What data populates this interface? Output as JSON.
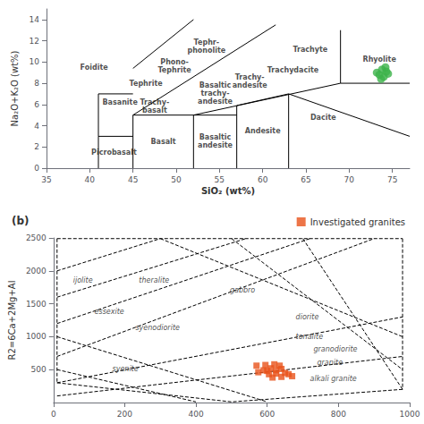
{
  "chart_data": [
    {
      "type": "scatter",
      "xlabel": "SiO₂ (wt%)",
      "ylabel": "Na₂O+K₂O (wt%)",
      "xlim": [
        35,
        77
      ],
      "ylim": [
        0,
        15
      ],
      "xticks": [
        35,
        40,
        45,
        50,
        55,
        60,
        65,
        70,
        75
      ],
      "yticks": [
        0,
        2,
        4,
        6,
        8,
        10,
        12,
        14
      ],
      "grid": false,
      "series": [
        {
          "type": "line",
          "color": "#000000",
          "line_style": "solid",
          "x": [
            41,
            41
          ],
          "values": [
            0,
            3
          ]
        },
        {
          "type": "line",
          "color": "#000000",
          "line_style": "solid",
          "x": [
            41,
            45
          ],
          "values": [
            3,
            3
          ]
        },
        {
          "type": "line",
          "color": "#000000",
          "line_style": "solid",
          "x": [
            41,
            41
          ],
          "values": [
            3,
            7
          ]
        },
        {
          "type": "line",
          "color": "#000000",
          "line_style": "solid",
          "x": [
            41,
            45
          ],
          "values": [
            7,
            7
          ]
        },
        {
          "type": "line",
          "color": "#000000",
          "line_style": "solid",
          "x": [
            45,
            45
          ],
          "values": [
            0,
            5
          ]
        },
        {
          "type": "line",
          "color": "#000000",
          "line_style": "solid",
          "x": [
            45,
            52
          ],
          "values": [
            5,
            5
          ]
        },
        {
          "type": "line",
          "color": "#000000",
          "line_style": "solid",
          "x": [
            52,
            52
          ],
          "values": [
            0,
            5
          ]
        },
        {
          "type": "line",
          "color": "#000000",
          "line_style": "solid",
          "x": [
            52,
            57
          ],
          "values": [
            5,
            5
          ]
        },
        {
          "type": "line",
          "color": "#000000",
          "line_style": "solid",
          "x": [
            57,
            57
          ],
          "values": [
            0,
            5.9
          ]
        },
        {
          "type": "line",
          "color": "#000000",
          "line_style": "solid",
          "x": [
            57,
            63
          ],
          "values": [
            5.9,
            7
          ]
        },
        {
          "type": "line",
          "color": "#000000",
          "line_style": "solid",
          "x": [
            63,
            63
          ],
          "values": [
            0,
            7
          ]
        },
        {
          "type": "line",
          "color": "#000000",
          "line_style": "solid",
          "x": [
            63,
            77
          ],
          "values": [
            7,
            3
          ]
        },
        {
          "type": "line",
          "color": "#000000",
          "line_style": "solid",
          "x": [
            52,
            69
          ],
          "values": [
            5,
            8
          ]
        },
        {
          "type": "line",
          "color": "#000000",
          "line_style": "solid",
          "x": [
            69,
            77
          ],
          "values": [
            8,
            8
          ]
        },
        {
          "type": "line",
          "color": "#000000",
          "line_style": "solid",
          "x": [
            69,
            69
          ],
          "values": [
            8,
            13
          ]
        },
        {
          "type": "line",
          "color": "#000000",
          "line_style": "solid",
          "x": [
            45,
            61.5
          ],
          "values": [
            5,
            13.5
          ]
        },
        {
          "type": "line",
          "color": "#000000",
          "line_style": "solid",
          "x": [
            45,
            52
          ],
          "values": [
            9.4,
            14
          ]
        },
        {
          "type": "scatter",
          "color": "#3CB34A",
          "marker": "circle",
          "x": [
            73.2,
            73.8,
            74.3,
            74.0,
            73.5,
            74.5,
            73.7,
            74.2
          ],
          "values": [
            9.0,
            9.3,
            9.1,
            8.6,
            8.8,
            8.9,
            8.4,
            9.5
          ]
        }
      ],
      "annotations": [
        {
          "text": "Picrobasalt",
          "x": 42.8,
          "y": 1.5
        },
        {
          "text": "Basalt",
          "x": 48.5,
          "y": 2.5
        },
        {
          "text": "Basaltic\nandesite",
          "x": 54.5,
          "y": 2.5
        },
        {
          "text": "Andesite",
          "x": 60.0,
          "y": 3.5
        },
        {
          "text": "Dacite",
          "x": 67.0,
          "y": 4.8
        },
        {
          "text": "Rhyolite",
          "x": 73.5,
          "y": 10.2
        },
        {
          "text": "Trachyte",
          "x": 65.5,
          "y": 11.2
        },
        {
          "text": "Trachydacite",
          "x": 63.5,
          "y": 9.2
        },
        {
          "text": "Trachy-\nandesite",
          "x": 58.5,
          "y": 8.2
        },
        {
          "text": "Basaltic\ntrachy-\nandesite",
          "x": 54.5,
          "y": 7.0
        },
        {
          "text": "Trachy-\nbasalt",
          "x": 47.5,
          "y": 5.8
        },
        {
          "text": "Basanite",
          "x": 43.5,
          "y": 6.2
        },
        {
          "text": "Tephrite",
          "x": 46.5,
          "y": 8.0
        },
        {
          "text": "Phono-\nTephrite",
          "x": 49.8,
          "y": 9.6
        },
        {
          "text": "Tephr-\nphonolite",
          "x": 53.5,
          "y": 11.5
        },
        {
          "text": "Foidite",
          "x": 40.5,
          "y": 9.5
        }
      ]
    },
    {
      "type": "scatter",
      "title": "(b)",
      "ylabel": "R2=6Ca+2Mg+Al",
      "xlim": [
        0,
        1000
      ],
      "ylim": [
        0,
        2500
      ],
      "xticks": [
        0,
        200,
        400,
        600,
        800,
        1000
      ],
      "yticks": [
        500,
        1000,
        1500,
        2000,
        2500
      ],
      "grid": false,
      "legend": "upper right",
      "series": [
        {
          "type": "line",
          "color": "#000000",
          "line_style": "dashed",
          "x": [
            10,
            10
          ],
          "values": [
            2490,
            300
          ]
        },
        {
          "type": "line",
          "color": "#000000",
          "line_style": "dashed",
          "x": [
            10,
            500
          ],
          "values": [
            300,
            10
          ]
        },
        {
          "type": "line",
          "color": "#000000",
          "line_style": "dashed",
          "x": [
            10,
            980
          ],
          "values": [
            2490,
            2490
          ]
        },
        {
          "type": "line",
          "color": "#000000",
          "line_style": "dashed",
          "x": [
            980,
            980
          ],
          "values": [
            2490,
            200
          ]
        },
        {
          "type": "line",
          "color": "#000000",
          "line_style": "dashed",
          "x": [
            980,
            500
          ],
          "values": [
            200,
            10
          ]
        },
        {
          "type": "line",
          "color": "#000000",
          "line_style": "dashed",
          "x": [
            10,
            300
          ],
          "values": [
            2000,
            2490
          ]
        },
        {
          "type": "line",
          "color": "#000000",
          "line_style": "dashed",
          "x": [
            10,
            540
          ],
          "values": [
            1600,
            2490
          ]
        },
        {
          "type": "line",
          "color": "#000000",
          "line_style": "dashed",
          "x": [
            10,
            720
          ],
          "values": [
            1200,
            2490
          ]
        },
        {
          "type": "line",
          "color": "#000000",
          "line_style": "dashed",
          "x": [
            10,
            900
          ],
          "values": [
            700,
            2490
          ]
        },
        {
          "type": "line",
          "color": "#000000",
          "line_style": "dashed",
          "x": [
            10,
            980
          ],
          "values": [
            300,
            1300
          ]
        },
        {
          "type": "line",
          "color": "#000000",
          "line_style": "dashed",
          "x": [
            10,
            980
          ],
          "values": [
            100,
            700
          ]
        },
        {
          "type": "line",
          "color": "#000000",
          "line_style": "dashed",
          "x": [
            300,
            980
          ],
          "values": [
            2490,
            1000
          ]
        },
        {
          "type": "line",
          "color": "#000000",
          "line_style": "dashed",
          "x": [
            500,
            980
          ],
          "values": [
            2490,
            500
          ]
        },
        {
          "type": "line",
          "color": "#000000",
          "line_style": "dashed",
          "x": [
            700,
            980
          ],
          "values": [
            2490,
            200
          ]
        },
        {
          "type": "line",
          "color": "#000000",
          "line_style": "dashed",
          "x": [
            10,
            600
          ],
          "values": [
            1000,
            10
          ]
        },
        {
          "type": "line",
          "color": "#000000",
          "line_style": "dashed",
          "x": [
            10,
            400
          ],
          "values": [
            500,
            10
          ]
        },
        {
          "type": "scatter",
          "name": "Investigated granites",
          "color": "#E8521A",
          "marker": "square",
          "x": [
            570,
            595,
            620,
            635,
            610,
            590,
            575,
            600,
            625,
            640,
            605,
            625,
            650,
            660,
            670,
            640,
            615
          ],
          "values": [
            560,
            570,
            580,
            560,
            520,
            490,
            460,
            480,
            490,
            510,
            430,
            440,
            450,
            430,
            400,
            390,
            380
          ]
        }
      ],
      "annotations": [
        {
          "text": "ijolite",
          "x": 55,
          "y": 1850
        },
        {
          "text": "theralite",
          "x": 240,
          "y": 1850
        },
        {
          "text": "gabbro",
          "x": 495,
          "y": 1700
        },
        {
          "text": "essexite",
          "x": 115,
          "y": 1380
        },
        {
          "text": "syenodiorite",
          "x": 230,
          "y": 1130
        },
        {
          "text": "diorite",
          "x": 680,
          "y": 1300
        },
        {
          "text": "tonalite",
          "x": 680,
          "y": 1000
        },
        {
          "text": "granodiorite",
          "x": 730,
          "y": 810
        },
        {
          "text": "granite",
          "x": 740,
          "y": 600
        },
        {
          "text": "alkali granite",
          "x": 720,
          "y": 360
        },
        {
          "text": "syenite",
          "x": 165,
          "y": 510
        }
      ]
    }
  ]
}
